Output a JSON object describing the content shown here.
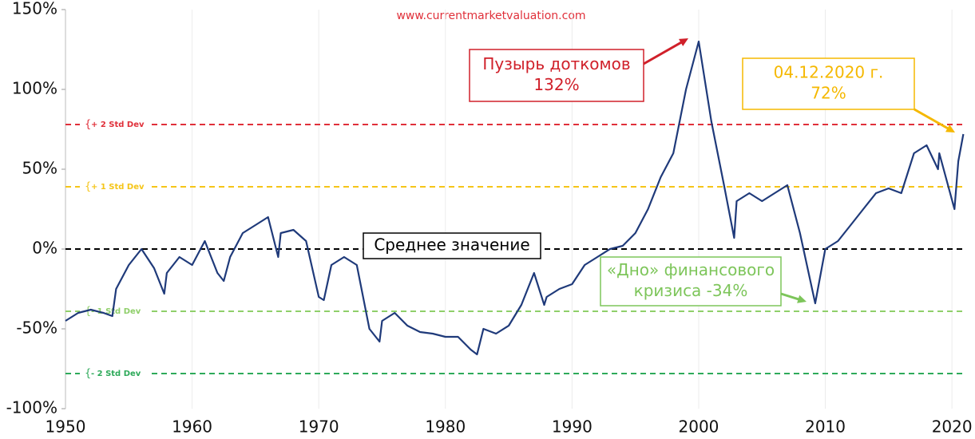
{
  "chart_data": {
    "type": "line",
    "source": "www.currentmarketvaluation.com",
    "color": "#1f3a7a",
    "xlim": [
      1950,
      2021
    ],
    "ylim": [
      -100,
      150
    ],
    "xticks": [
      1950,
      1960,
      1970,
      1980,
      1990,
      2000,
      2010,
      2020
    ],
    "yticks": [
      {
        "value": 150,
        "label": "150%"
      },
      {
        "value": 100,
        "label": "100%"
      },
      {
        "value": 50,
        "label": "50%"
      },
      {
        "value": 0,
        "label": "0%"
      },
      {
        "value": -50,
        "label": "-50%"
      },
      {
        "value": -100,
        "label": "-100%"
      }
    ],
    "grid": true,
    "x": [
      1950,
      1951,
      1952,
      1953,
      1953.7,
      1954,
      1955,
      1956,
      1957,
      1957.8,
      1958,
      1959,
      1960,
      1961,
      1962,
      1962.5,
      1963,
      1964,
      1965,
      1966,
      1966.8,
      1967,
      1968,
      1969,
      1970,
      1970.4,
      1971,
      1972,
      1973,
      1974,
      1974.8,
      1975,
      1976,
      1977,
      1978,
      1979,
      1980,
      1981,
      1982,
      1982.5,
      1983,
      1984,
      1985,
      1986,
      1987,
      1987.8,
      1988,
      1989,
      1990,
      1991,
      1992,
      1993,
      1994,
      1995,
      1996,
      1997,
      1998,
      1999,
      2000,
      2001,
      2002,
      2002.8,
      2003,
      2004,
      2005,
      2006,
      2007,
      2008,
      2009.2,
      2010,
      2011,
      2012,
      2013,
      2014,
      2015,
      2016,
      2017,
      2018,
      2018.9,
      2019,
      2020.2,
      2020.5,
      2020.9
    ],
    "values": [
      -45,
      -40,
      -38,
      -40,
      -42,
      -25,
      -10,
      0,
      -12,
      -28,
      -15,
      -5,
      -10,
      5,
      -15,
      -20,
      -5,
      10,
      15,
      20,
      -5,
      10,
      12,
      5,
      -30,
      -32,
      -10,
      -5,
      -10,
      -50,
      -58,
      -45,
      -40,
      -48,
      -52,
      -53,
      -55,
      -55,
      -63,
      -66,
      -50,
      -53,
      -48,
      -35,
      -15,
      -35,
      -30,
      -25,
      -22,
      -10,
      -5,
      0,
      2,
      10,
      25,
      45,
      60,
      100,
      130,
      80,
      40,
      7,
      30,
      35,
      30,
      35,
      40,
      10,
      -34,
      0,
      5,
      15,
      25,
      35,
      38,
      35,
      60,
      65,
      50,
      60,
      25,
      55,
      72
    ],
    "reference_lines": [
      {
        "value": 78,
        "label": "+ 2 Std Dev",
        "color": "#e0303a"
      },
      {
        "value": 39,
        "label": "+ 1 Std Dev",
        "color": "#f5c518"
      },
      {
        "value": 0,
        "color": "#000000"
      },
      {
        "value": -39,
        "label": "- 1 Std Dev",
        "color": "#8fcf6a"
      },
      {
        "value": -78,
        "label": "- 2 Std Dev",
        "color": "#2eaa5a"
      }
    ],
    "annotations": [
      {
        "lines": [
          "Пузырь доткомов",
          "132%"
        ],
        "color": "#d0202a"
      },
      {
        "lines": [
          "04.12.2020 г.",
          "72%"
        ],
        "color": "#f5b800"
      },
      {
        "lines": [
          "Среднее значение"
        ],
        "color": "#000000"
      },
      {
        "lines": [
          "«Дно» финансового",
          "кризиса -34%"
        ],
        "color": "#7dc55a"
      }
    ]
  }
}
